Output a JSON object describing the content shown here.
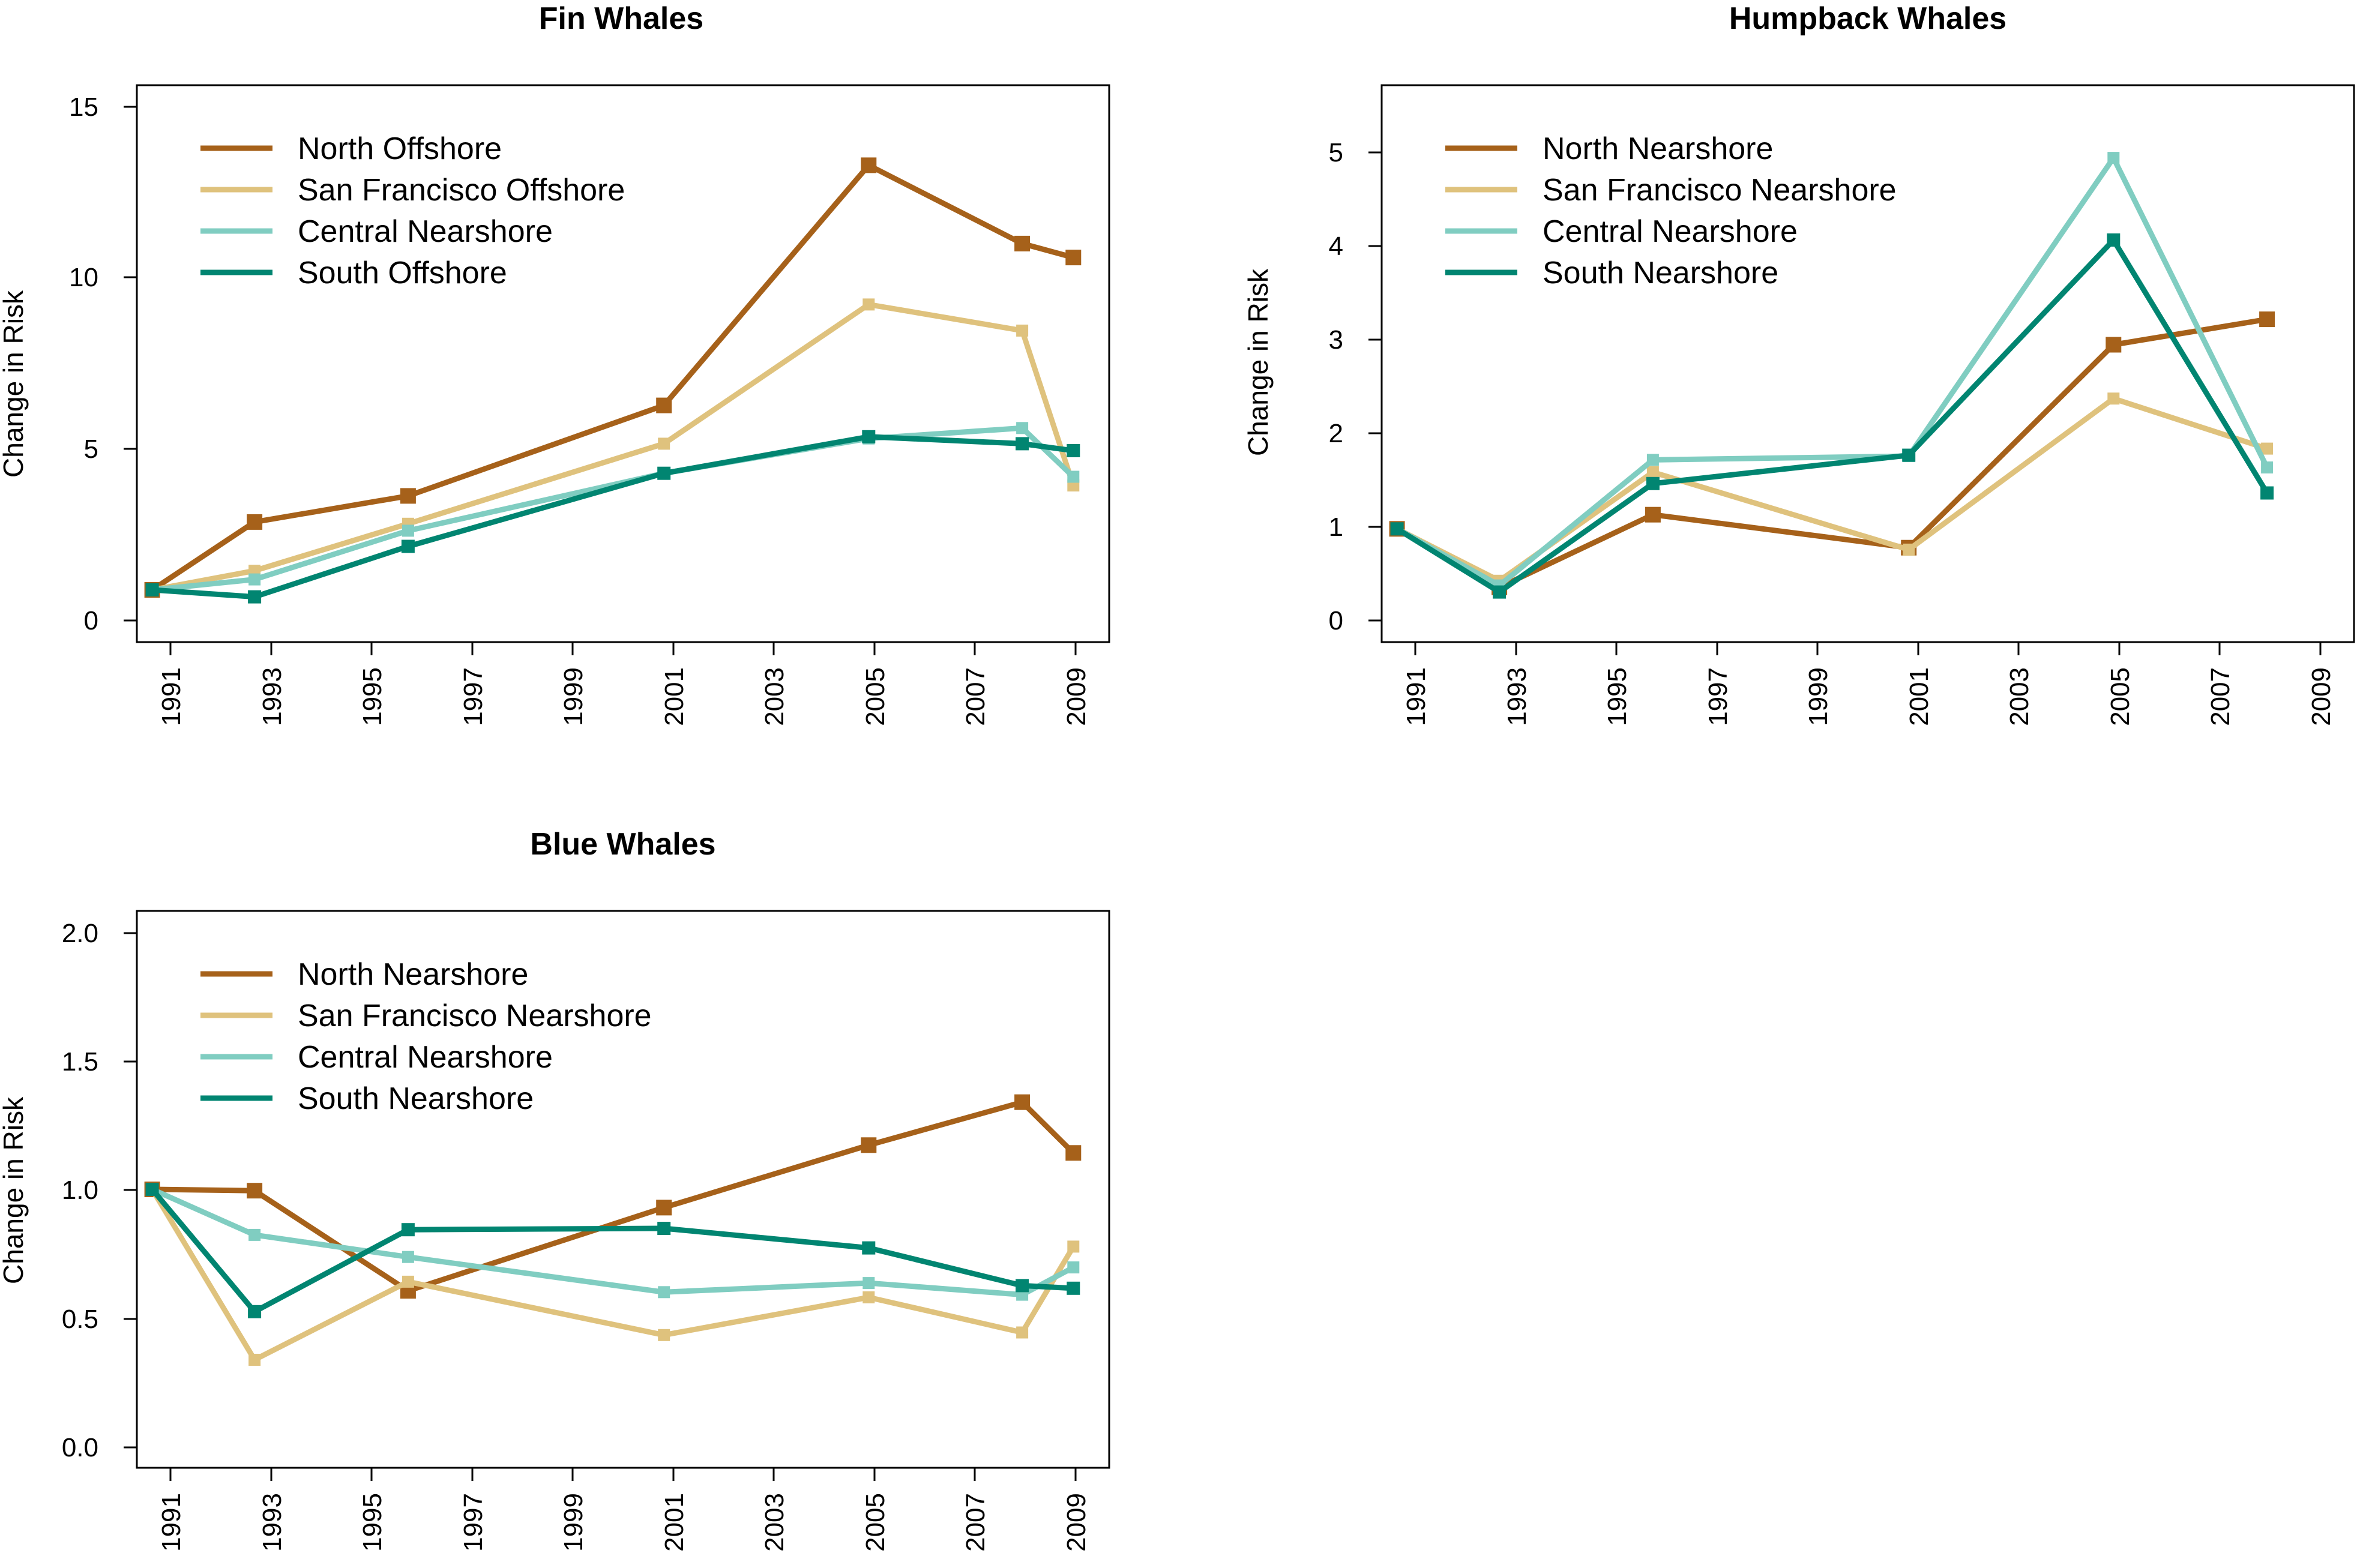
{
  "colors": {
    "north": "#a6611a",
    "sanfrancisco": "#dfc27d",
    "central": "#80cdc1",
    "south": "#018571"
  },
  "chart_data": [
    {
      "type": "line",
      "title": "Fin Whales",
      "xlabel": "",
      "ylabel": "Change in Risk",
      "xlim": [
        1990.7,
        2009.7
      ],
      "ylim": [
        -0.5,
        15.5
      ],
      "x_ticks": [
        "1991",
        "1993",
        "1995",
        "1997",
        "1999",
        "2001",
        "2003",
        "2005",
        "2007",
        "2009"
      ],
      "y_ticks": [
        "0",
        "5",
        "10",
        "15"
      ],
      "legend_position": "top-left",
      "series": [
        {
          "name": "North Offshore",
          "color": "#a6611a",
          "x": [
            1991,
            1993,
            1996,
            2001,
            2005,
            2008,
            2009
          ],
          "values": [
            1.0,
            2.95,
            3.7,
            6.3,
            13.2,
            10.95,
            10.55
          ]
        },
        {
          "name": "San Francisco Offshore",
          "color": "#dfc27d",
          "x": [
            1991,
            1993,
            1996,
            2001,
            2005,
            2008,
            2009
          ],
          "values": [
            1.0,
            1.55,
            2.9,
            5.2,
            9.2,
            8.45,
            4.0
          ]
        },
        {
          "name": "Central Nearshore",
          "color": "#80cdc1",
          "x": [
            1991,
            1993,
            1996,
            2001,
            2005,
            2008,
            2009
          ],
          "values": [
            1.0,
            1.3,
            2.7,
            4.35,
            5.35,
            5.65,
            4.25
          ]
        },
        {
          "name": "South Offshore",
          "color": "#018571",
          "x": [
            1991,
            1993,
            1996,
            2001,
            2005,
            2008,
            2009
          ],
          "values": [
            1.0,
            0.8,
            2.25,
            4.35,
            5.4,
            5.2,
            5.0
          ]
        }
      ]
    },
    {
      "type": "line",
      "title": "Humpback Whales",
      "xlabel": "",
      "ylabel": "Change in Risk",
      "xlim": [
        1990.7,
        2009.7
      ],
      "ylim": [
        -0.2,
        5.7
      ],
      "x_ticks": [
        "1991",
        "1993",
        "1995",
        "1997",
        "1999",
        "2001",
        "2003",
        "2005",
        "2007",
        "2009"
      ],
      "y_ticks": [
        "0",
        "1",
        "2",
        "3",
        "4",
        "5"
      ],
      "legend_position": "top-left",
      "series": [
        {
          "name": "North Nearshore",
          "color": "#a6611a",
          "x": [
            1991,
            1993,
            1996,
            2001,
            2005,
            2008
          ],
          "values": [
            1.0,
            0.38,
            1.15,
            0.8,
            2.95,
            3.22
          ]
        },
        {
          "name": "San Francisco Nearshore",
          "color": "#dfc27d",
          "x": [
            1991,
            1993,
            1996,
            2001,
            2005,
            2008
          ],
          "values": [
            1.0,
            0.45,
            1.6,
            0.78,
            2.38,
            1.85
          ]
        },
        {
          "name": "Central Nearshore",
          "color": "#80cdc1",
          "x": [
            1991,
            1993,
            1996,
            2001,
            2005,
            2008
          ],
          "values": [
            1.0,
            0.4,
            1.73,
            1.77,
            4.93,
            1.65
          ]
        },
        {
          "name": "South Nearshore",
          "color": "#018571",
          "x": [
            1991,
            1993,
            1996,
            2001,
            2005,
            2008
          ],
          "values": [
            1.0,
            0.33,
            1.48,
            1.78,
            4.06,
            1.38
          ]
        }
      ]
    },
    {
      "type": "line",
      "title": "Blue Whales",
      "xlabel": "",
      "ylabel": "Change in Risk",
      "xlim": [
        1990.7,
        2009.7
      ],
      "ylim": [
        -0.07,
        2.07
      ],
      "x_ticks": [
        "1991",
        "1993",
        "1995",
        "1997",
        "1999",
        "2001",
        "2003",
        "2005",
        "2007",
        "2009"
      ],
      "y_ticks": [
        "0.0",
        "0.5",
        "1.0",
        "1.5",
        "2.0"
      ],
      "legend_position": "top-left",
      "series": [
        {
          "name": "North Nearshore",
          "color": "#a6611a",
          "x": [
            1991,
            1993,
            1996,
            2001,
            2005,
            2008,
            2009
          ],
          "values": [
            1.0,
            0.995,
            0.61,
            0.93,
            1.17,
            1.335,
            1.14
          ]
        },
        {
          "name": "San Francisco Nearshore",
          "color": "#dfc27d",
          "x": [
            1991,
            1993,
            1996,
            2001,
            2005,
            2008,
            2009
          ],
          "values": [
            1.0,
            0.345,
            0.645,
            0.44,
            0.585,
            0.45,
            0.78
          ]
        },
        {
          "name": "Central Nearshore",
          "color": "#80cdc1",
          "x": [
            1991,
            1993,
            1996,
            2001,
            2005,
            2008,
            2009
          ],
          "values": [
            1.0,
            0.825,
            0.74,
            0.605,
            0.64,
            0.595,
            0.7
          ]
        },
        {
          "name": "South Nearshore",
          "color": "#018571",
          "x": [
            1991,
            1993,
            1996,
            2001,
            2005,
            2008,
            2009
          ],
          "values": [
            1.0,
            0.53,
            0.845,
            0.85,
            0.775,
            0.63,
            0.62
          ]
        }
      ]
    }
  ]
}
